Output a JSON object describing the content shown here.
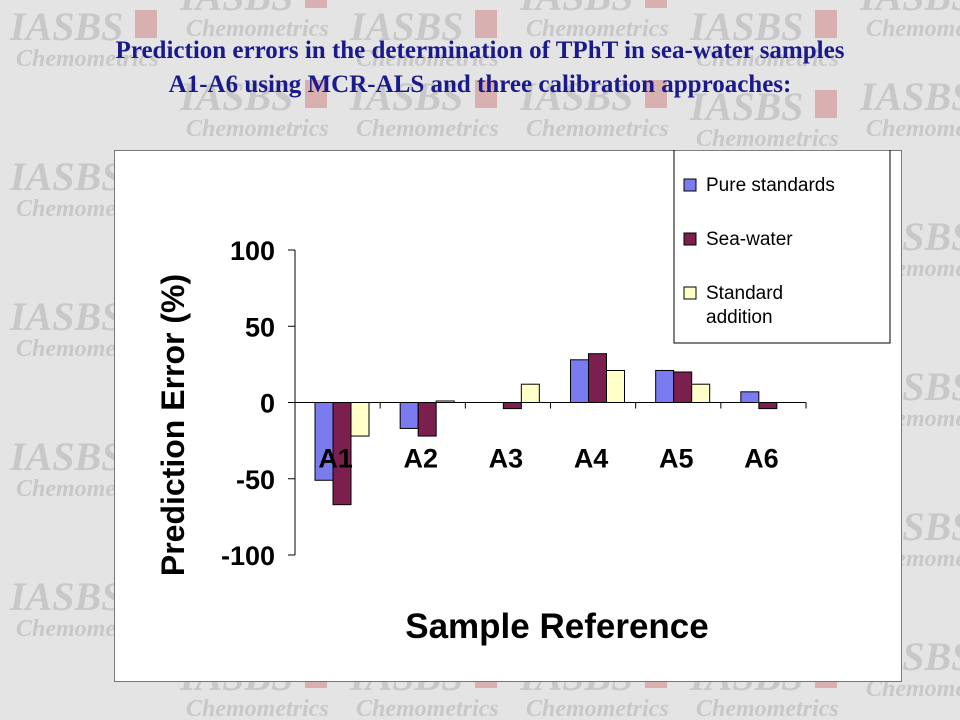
{
  "title": {
    "line1": "Prediction errors in the determination of TPhT in sea-water samples",
    "line2": "A1-A6 using MCR-ALS and three calibration approaches:"
  },
  "watermark": {
    "brand": "IASBS",
    "sub": "Chemometrics",
    "brand_color": "#c8c8c8",
    "flag_color": "#d9b0b0"
  },
  "chart_data": {
    "type": "bar",
    "categories": [
      "A1",
      "A2",
      "A3",
      "A4",
      "A5",
      "A6"
    ],
    "series": [
      {
        "name": "Pure standards",
        "color": "#7b7bf0",
        "values": [
          -51,
          -17,
          0,
          28,
          21,
          7
        ]
      },
      {
        "name": "Sea-water",
        "color": "#7b1f4e",
        "values": [
          -67,
          -22,
          -4,
          32,
          20,
          -4
        ]
      },
      {
        "name": "Standard addition",
        "color": "#ffffc8",
        "values": [
          -22,
          1,
          12,
          21,
          12,
          0
        ]
      }
    ],
    "xlabel": "Sample Reference",
    "ylabel": "Prediction Error (%)",
    "ylim": [
      -100,
      100
    ],
    "yticks": [
      -100,
      -50,
      0,
      50,
      100
    ],
    "grid": false,
    "legend_position": "top-right"
  }
}
